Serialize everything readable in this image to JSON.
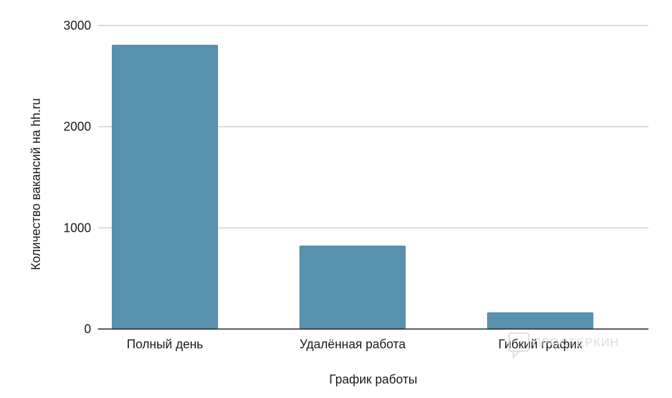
{
  "chart_data": {
    "type": "bar",
    "title": "",
    "xlabel": "График работы",
    "ylabel": "Количество вакансий на hh.ru",
    "categories": [
      "Полный день",
      "Удалённая работа",
      "Гибкий график"
    ],
    "values": [
      2810,
      825,
      165
    ],
    "ylim": [
      0,
      3000
    ],
    "yticks": [
      0,
      1000,
      2000,
      3000
    ],
    "grid": true,
    "legend": "none",
    "bar_color": "#5791ae"
  },
  "watermark": {
    "text": "ПРОСТЕРКИН",
    "color": "#d9d9d9"
  }
}
